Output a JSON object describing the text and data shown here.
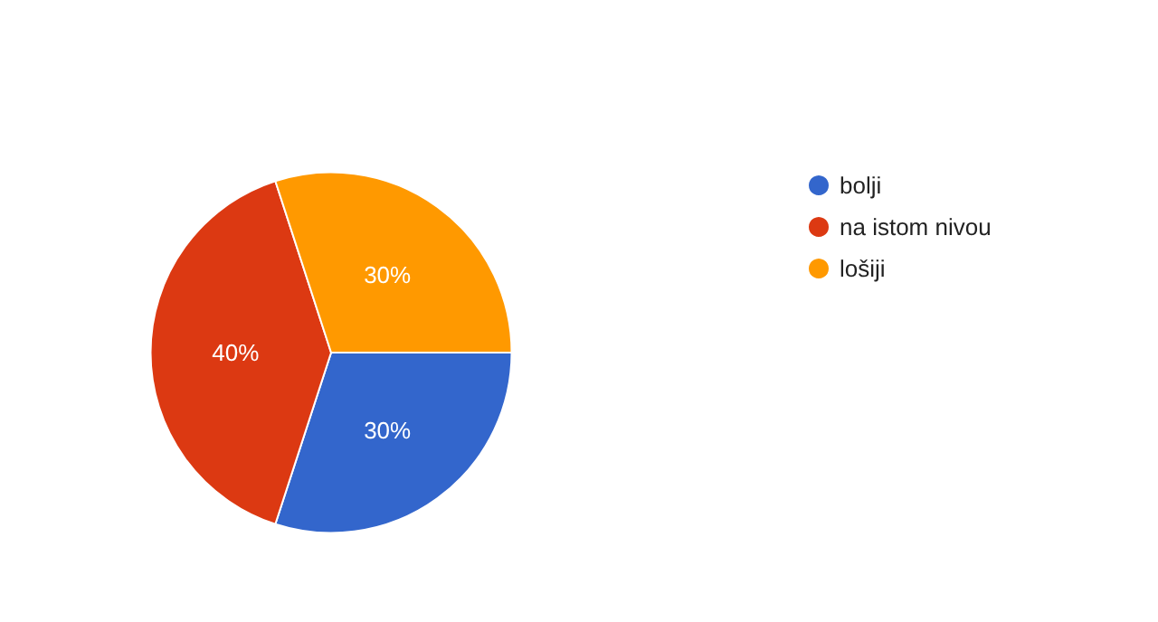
{
  "chart_data": {
    "type": "pie",
    "categories": [
      "bolji",
      "na istom nivou",
      "lošiji"
    ],
    "values": [
      30,
      40,
      30
    ],
    "colors": [
      "#3366cc",
      "#dc3912",
      "#ff9900"
    ],
    "value_labels": [
      "30%",
      "40%",
      "30%"
    ],
    "legend": "right"
  }
}
